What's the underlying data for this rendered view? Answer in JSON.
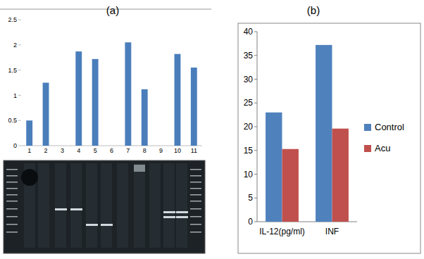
{
  "chart_data": [
    {
      "type": "bar",
      "title": "(a)",
      "categories": [
        "1",
        "2",
        "3",
        "4",
        "5",
        "6",
        "7",
        "8",
        "9",
        "10",
        "11"
      ],
      "values": [
        0.5,
        1.25,
        0,
        1.87,
        1.72,
        0,
        2.05,
        1.12,
        0,
        1.82,
        1.55
      ],
      "color": "#4a7ebb",
      "ylim": [
        0,
        2.5
      ],
      "yticks": [
        0,
        0.5,
        1,
        1.5,
        2,
        2.5
      ],
      "grid": false
    },
    {
      "type": "bar",
      "title": "(b)",
      "categories": [
        "IL-12(pg/ml)",
        "INF"
      ],
      "series": [
        {
          "name": "Control",
          "color": "#4f81bd",
          "values": [
            23,
            37.2
          ]
        },
        {
          "name": "Acu",
          "color": "#c0504d",
          "values": [
            15.3,
            19.6
          ]
        }
      ],
      "ylim": [
        0,
        40
      ],
      "yticks": [
        0,
        5,
        10,
        15,
        20,
        25,
        30,
        35,
        40
      ],
      "grid": false,
      "legend": "right"
    }
  ]
}
